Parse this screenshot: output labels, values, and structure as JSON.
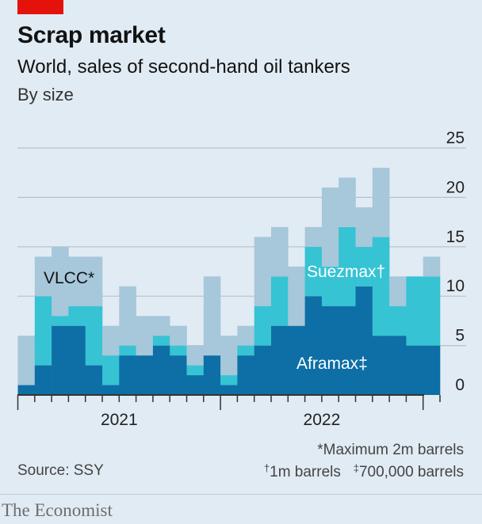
{
  "header": {
    "title": "Scrap market",
    "subtitle": "World, sales of second-hand oil tankers",
    "subtitle2": "By size"
  },
  "footer": {
    "source": "Source: SSY",
    "note1": "*Maximum 2m barrels",
    "note2a_sym": "†",
    "note2a": "1m barrels",
    "note2b_sym": "‡",
    "note2b": "700,000 barrels",
    "brand": "The Economist"
  },
  "colors": {
    "aframax": "#0d6fa5",
    "suezmax": "#36c3d4",
    "vlcc": "#a7c7da",
    "axis": "#333333",
    "grid": "#b5c1ca",
    "background": "#e1ebf3"
  },
  "chart_data": {
    "type": "bar",
    "stacked": true,
    "x_tick_labels": [
      "2021",
      "2022"
    ],
    "x_tick_label_months": [
      6,
      18
    ],
    "months": [
      "2020-07",
      "2020-08",
      "2020-09",
      "2020-10",
      "2020-11",
      "2020-12",
      "2021-01",
      "2021-02",
      "2021-03",
      "2021-04",
      "2021-05",
      "2021-06",
      "2021-07",
      "2021-08",
      "2021-09",
      "2021-10",
      "2021-11",
      "2021-12",
      "2022-01",
      "2022-02",
      "2022-03",
      "2022-04",
      "2022-05",
      "2022-06",
      "2022-07"
    ],
    "series": [
      {
        "name": "Aframax",
        "label": "Aframax‡",
        "color": "#0d6fa5",
        "values": [
          1,
          3,
          7,
          7,
          3,
          1,
          4,
          4,
          5,
          4,
          2,
          4,
          1,
          4,
          5,
          7,
          7,
          10,
          9,
          9,
          11,
          6,
          6,
          5,
          5
        ]
      },
      {
        "name": "Suezmax",
        "label": "Suezmax†",
        "color": "#36c3d4",
        "values": [
          0,
          7,
          1,
          2,
          6,
          3,
          1,
          0,
          1,
          1,
          1,
          0,
          1,
          1,
          4,
          5,
          0,
          5,
          4,
          8,
          4,
          10,
          3,
          7,
          7
        ]
      },
      {
        "name": "VLCC",
        "label": "VLCC*",
        "color": "#a7c7da",
        "values": [
          5,
          4,
          7,
          5,
          5,
          3,
          6,
          4,
          2,
          2,
          2,
          8,
          4,
          2,
          7,
          5,
          6,
          2,
          8,
          5,
          4,
          7,
          3,
          0,
          2
        ]
      }
    ],
    "totals": [
      6,
      14,
      15,
      14,
      14,
      7,
      11,
      8,
      8,
      7,
      5,
      12,
      6,
      7,
      16,
      17,
      13,
      17,
      21,
      22,
      19,
      23,
      12,
      12,
      14
    ],
    "ylim": [
      0,
      25
    ],
    "y_ticks": [
      0,
      5,
      10,
      15,
      20,
      25
    ],
    "grid": true,
    "y_axis_side": "right"
  }
}
